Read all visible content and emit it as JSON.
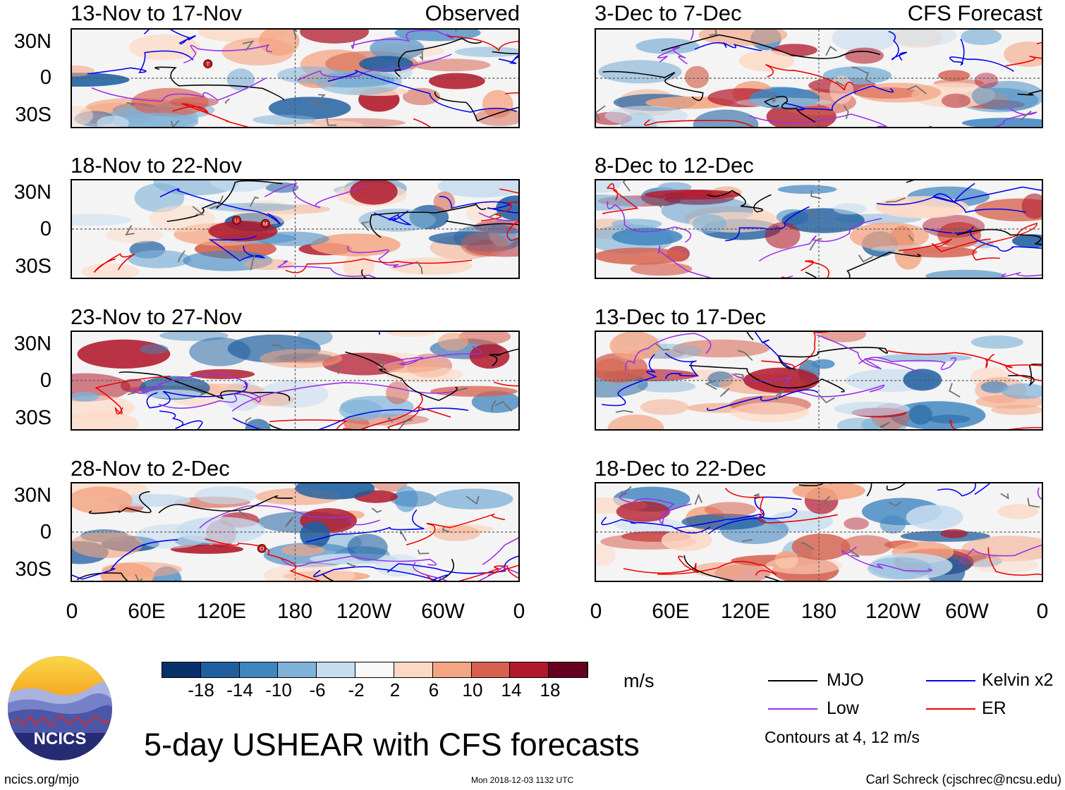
{
  "panels_left": [
    {
      "title": "13-Nov to 17-Nov",
      "label": "Observed"
    },
    {
      "title": "18-Nov to 22-Nov",
      "label": ""
    },
    {
      "title": "23-Nov to 27-Nov",
      "label": ""
    },
    {
      "title": "28-Nov to 2-Dec",
      "label": ""
    }
  ],
  "panels_right": [
    {
      "title": "3-Dec to 7-Dec",
      "label": "CFS Forecast"
    },
    {
      "title": "8-Dec to 12-Dec",
      "label": ""
    },
    {
      "title": "13-Dec to 17-Dec",
      "label": ""
    },
    {
      "title": "18-Dec to 22-Dec",
      "label": ""
    }
  ],
  "lat_labels": [
    "30N",
    "0",
    "30S"
  ],
  "lon_labels": [
    "0",
    "60E",
    "120E",
    "180",
    "120W",
    "60W",
    "0"
  ],
  "storm_markers": {
    "p0": [
      "T"
    ],
    "p1": [
      "U",
      "M"
    ],
    "p3": [
      "O"
    ]
  },
  "colorbar": {
    "ticks": [
      "-18",
      "-14",
      "-10",
      "-6",
      "-2",
      "2",
      "6",
      "10",
      "14",
      "18"
    ],
    "colors": [
      "#08306b",
      "#1f5fa0",
      "#3f85c0",
      "#7fb2d8",
      "#c6dcef",
      "#f9f9f9",
      "#fdd9c4",
      "#f4a582",
      "#d6604d",
      "#b2182b",
      "#67001f"
    ],
    "units": "m/s"
  },
  "legend": {
    "mjo": {
      "label": "MJO",
      "color": "#000000"
    },
    "kelvin": {
      "label": "Kelvin x2",
      "color": "#0000ee"
    },
    "low": {
      "label": "Low",
      "color": "#9a30e8"
    },
    "er": {
      "label": "ER",
      "color": "#ee0000"
    },
    "note": "Contours at 4, 12 m/s"
  },
  "logo": {
    "text": "NCICS"
  },
  "title": "5-day USHEAR with CFS forecasts",
  "footer": {
    "website": "ncics.org/mjo",
    "timestamp": "Mon 2018-12-03 1132 UTC",
    "credit": "Carl Schreck (cjschrec@ncsu.edu)"
  }
}
